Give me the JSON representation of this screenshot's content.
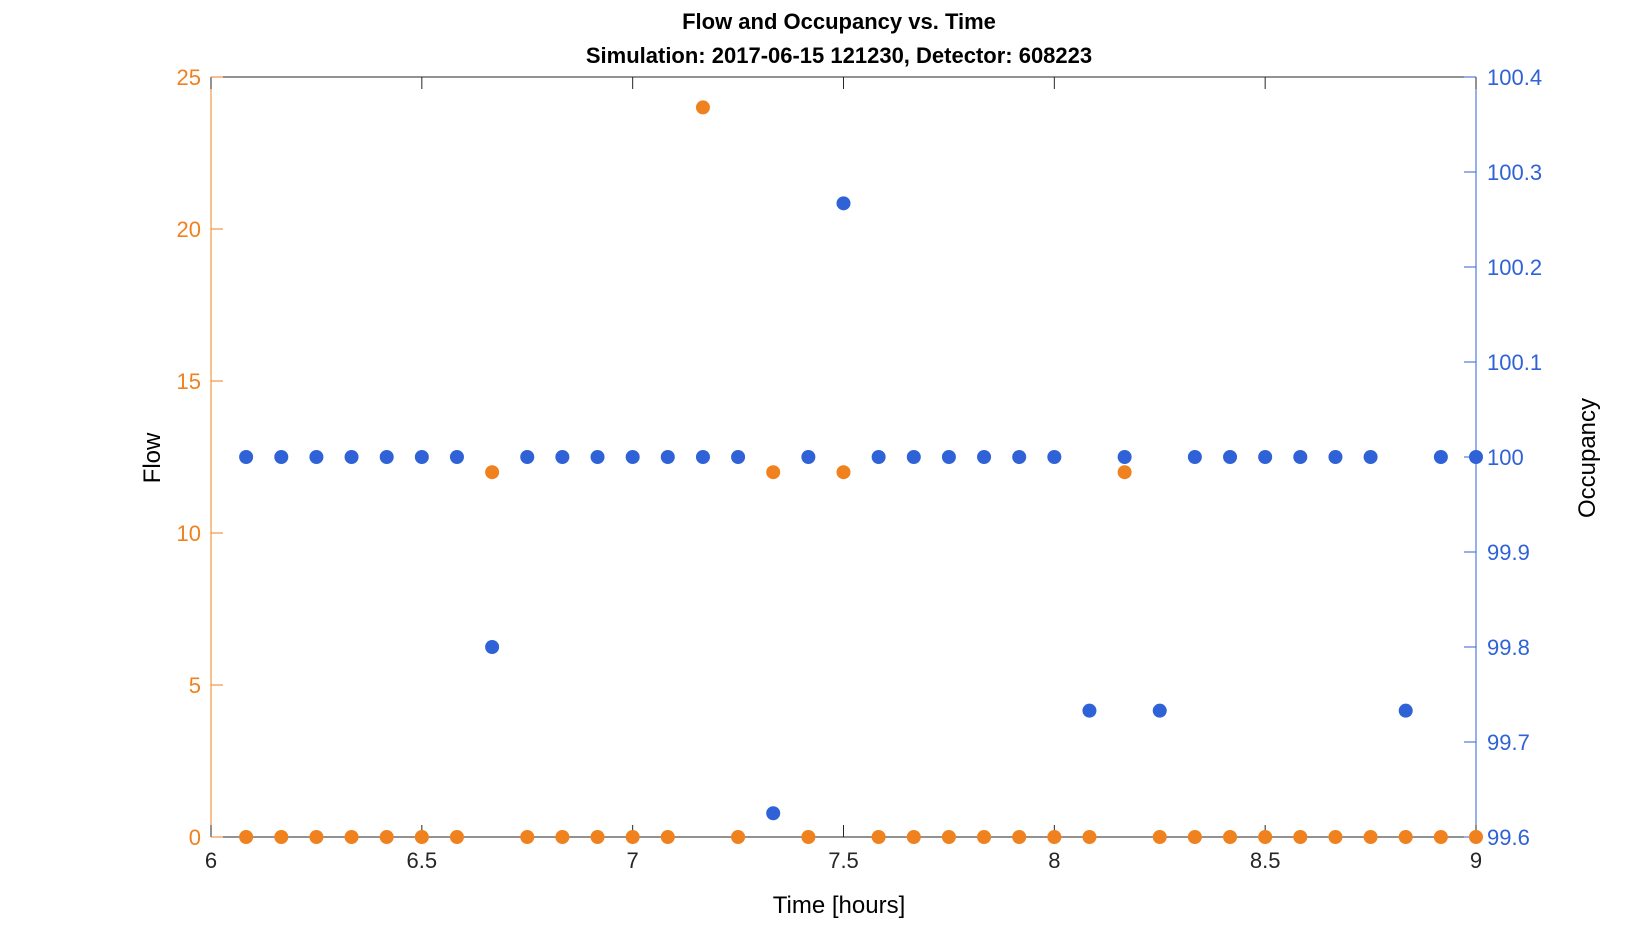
{
  "chart_data": {
    "type": "scatter",
    "title": "Flow and Occupancy vs. Time",
    "subtitle": "Simulation:  2017-06-15 121230,  Detector:  608223",
    "xlabel": "Time [hours]",
    "ylabel_left": "Flow",
    "ylabel_right": "Occupancy",
    "xlim": [
      6,
      9
    ],
    "ylim_left": [
      0,
      25
    ],
    "ylim_right": [
      99.6,
      100.4
    ],
    "x_ticks": [
      6,
      6.5,
      7,
      7.5,
      8,
      8.5,
      9
    ],
    "x_tick_labels": [
      "6",
      "6.5",
      "7",
      "7.5",
      "8",
      "8.5",
      "9"
    ],
    "y_left_ticks": [
      0,
      5,
      10,
      15,
      20,
      25
    ],
    "y_left_tick_labels": [
      "0",
      "5",
      "10",
      "15",
      "20",
      "25"
    ],
    "y_right_ticks": [
      99.6,
      99.7,
      99.8,
      99.9,
      100,
      100.1,
      100.2,
      100.3,
      100.4
    ],
    "y_right_tick_labels": [
      "99.6",
      "99.7",
      "99.8",
      "99.9",
      "100",
      "100.1",
      "100.2",
      "100.3",
      "100.4"
    ],
    "grid": false,
    "colors": {
      "flow": "#f0811f",
      "occupancy": "#2f62d6"
    },
    "series": [
      {
        "axis": "left",
        "x": [
          6.0833,
          6.1667,
          6.25,
          6.3333,
          6.4167,
          6.5,
          6.5833,
          6.6667,
          6.75,
          6.8333,
          6.9167,
          7.0,
          7.0833,
          7.1667,
          7.25,
          7.3333,
          7.4167,
          7.5,
          7.5833,
          7.6667,
          7.75,
          7.8333,
          7.9167,
          8.0,
          8.0833,
          8.1667,
          8.25,
          8.3333,
          8.4167,
          8.5,
          8.5833,
          8.6667,
          8.75,
          8.8333,
          8.9167,
          9.0
        ],
        "y": [
          0,
          0,
          0,
          0,
          0,
          0,
          0,
          12,
          0,
          0,
          0,
          0,
          0,
          24,
          0,
          12,
          0,
          12,
          0,
          0,
          0,
          0,
          0,
          0,
          0,
          12,
          0,
          0,
          0,
          0,
          0,
          0,
          0,
          0,
          0,
          0
        ]
      },
      {
        "axis": "right",
        "x": [
          6.0833,
          6.1667,
          6.25,
          6.3333,
          6.4167,
          6.5,
          6.5833,
          6.6667,
          6.75,
          6.8333,
          6.9167,
          7.0,
          7.0833,
          7.1667,
          7.25,
          7.3333,
          7.4167,
          7.5,
          7.5833,
          7.6667,
          7.75,
          7.8333,
          7.9167,
          8.0,
          8.0833,
          8.1667,
          8.25,
          8.3333,
          8.4167,
          8.5,
          8.5833,
          8.6667,
          8.75,
          8.8333,
          8.9167,
          9.0
        ],
        "y": [
          100,
          100,
          100,
          100,
          100,
          100,
          100,
          99.8,
          100,
          100,
          100,
          100,
          100,
          100,
          100,
          99.625,
          100,
          100.267,
          100,
          100,
          100,
          100,
          100,
          100,
          99.733,
          100,
          99.733,
          100,
          100,
          100,
          100,
          100,
          100,
          99.733,
          100,
          100
        ]
      }
    ]
  }
}
